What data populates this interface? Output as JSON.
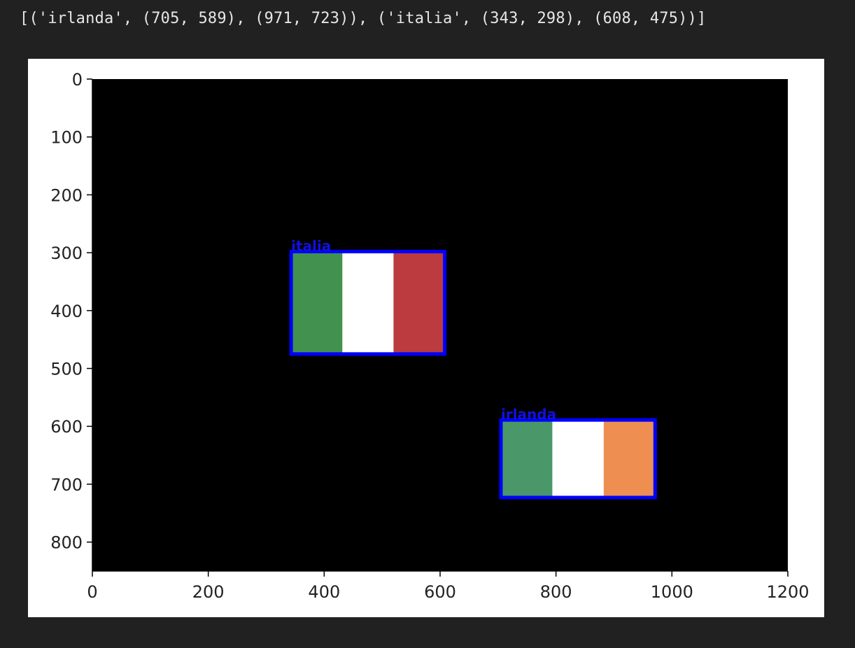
{
  "output": {
    "printed_text": "[('irlanda', (705, 589), (971, 723)), ('italia', (343, 298), (608, 475))]"
  },
  "chart_data": {
    "type": "image",
    "xlim": [
      0,
      1200
    ],
    "ylim": [
      850,
      0
    ],
    "x_ticks": [
      0,
      200,
      400,
      600,
      800,
      1000,
      1200
    ],
    "y_ticks": [
      0,
      100,
      200,
      300,
      400,
      500,
      600,
      700,
      800
    ],
    "background_color": "#000000",
    "box_color": "#0000ff",
    "detections": [
      {
        "label": "italia",
        "x1": 343,
        "y1": 298,
        "x2": 608,
        "y2": 475,
        "stripes": [
          "#43914f",
          "#ffffff",
          "#bb3b3e"
        ]
      },
      {
        "label": "irlanda",
        "x1": 705,
        "y1": 589,
        "x2": 971,
        "y2": 723,
        "stripes": [
          "#4a986a",
          "#ffffff",
          "#ee8f51"
        ]
      }
    ]
  }
}
